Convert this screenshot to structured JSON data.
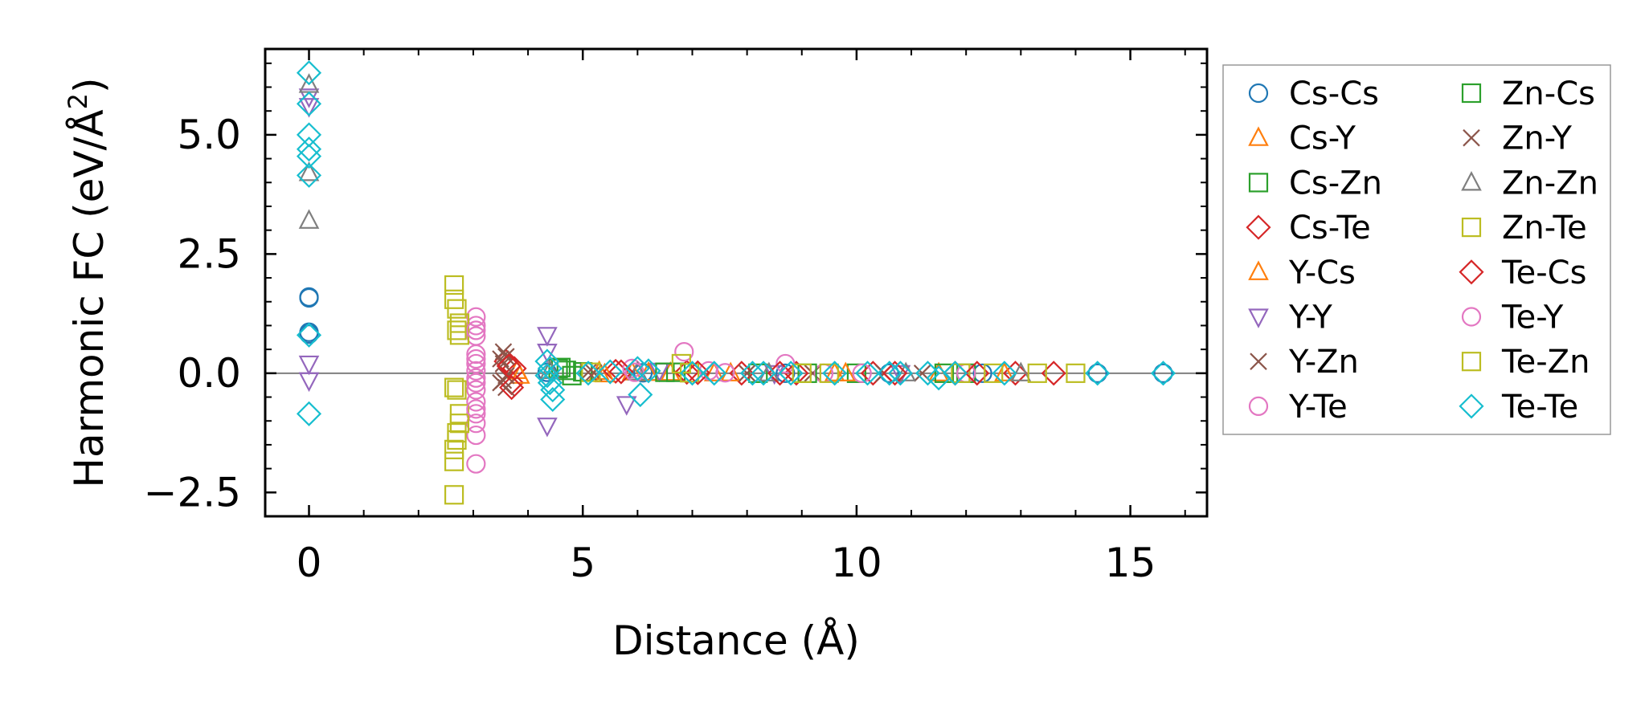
{
  "chart_data": {
    "type": "scatter",
    "xlabel": "Distance (Å)",
    "ylabel_main": "Harmonic FC (eV/Å",
    "ylabel_sup": "2",
    "ylabel_close": ")",
    "xlim": [
      -0.8,
      16.4
    ],
    "ylim": [
      -3.0,
      6.8
    ],
    "xticks": [
      {
        "v": 0,
        "label": "0"
      },
      {
        "v": 5,
        "label": "5"
      },
      {
        "v": 10,
        "label": "10"
      },
      {
        "v": 15,
        "label": "15"
      }
    ],
    "yticks": [
      {
        "v": -2.5,
        "label": "−2.5"
      },
      {
        "v": 0,
        "label": "0.0"
      },
      {
        "v": 2.5,
        "label": "2.5"
      },
      {
        "v": 5,
        "label": "5.0"
      }
    ],
    "grid": false,
    "zero_line": true,
    "legend_position": "outside-right",
    "series": [
      {
        "name": "Cs-Cs",
        "marker": "circle",
        "color": "#1f77b4",
        "points": [
          [
            0,
            1.58
          ],
          [
            0,
            1.6
          ],
          [
            0,
            0.86
          ],
          [
            0,
            0.82
          ],
          [
            4.35,
            0.02
          ],
          [
            6.1,
            0.01
          ],
          [
            8.7,
            0
          ],
          [
            10.6,
            0
          ],
          [
            12.3,
            0
          ],
          [
            14.4,
            0
          ],
          [
            15.6,
            0
          ]
        ]
      },
      {
        "name": "Cs-Y",
        "marker": "triangle-up",
        "color": "#ff7f0e",
        "points": [
          [
            3.8,
            0.05
          ],
          [
            5.3,
            0.03
          ],
          [
            5.9,
            0.02
          ],
          [
            6.6,
            0.01
          ],
          [
            7.4,
            0
          ],
          [
            9.6,
            0
          ],
          [
            11.5,
            0
          ]
        ]
      },
      {
        "name": "Cs-Zn",
        "marker": "square",
        "color": "#2ca02c",
        "points": [
          [
            4.55,
            0.1
          ],
          [
            4.7,
            0.06
          ],
          [
            5.0,
            0.03
          ],
          [
            6.7,
            0.02
          ],
          [
            8.2,
            0
          ],
          [
            10.0,
            0
          ],
          [
            12.0,
            0
          ]
        ]
      },
      {
        "name": "Cs-Te",
        "marker": "diamond",
        "color": "#d62728",
        "points": [
          [
            3.6,
            0.25
          ],
          [
            3.7,
            -0.2
          ],
          [
            3.75,
            0.1
          ],
          [
            5.6,
            0.04
          ],
          [
            6.9,
            0.02
          ],
          [
            7.9,
            0
          ],
          [
            8.9,
            0
          ],
          [
            10.3,
            0
          ],
          [
            11.8,
            0
          ],
          [
            12.9,
            0
          ],
          [
            13.6,
            0
          ]
        ]
      },
      {
        "name": "Y-Cs",
        "marker": "triangle-up",
        "color": "#ff7f0e",
        "points": [
          [
            3.85,
            -0.05
          ],
          [
            5.4,
            -0.02
          ],
          [
            6.2,
            0.01
          ],
          [
            7.7,
            0
          ],
          [
            9.8,
            0
          ],
          [
            12.7,
            0
          ]
        ]
      },
      {
        "name": "Y-Y",
        "marker": "triangle-down",
        "color": "#9467bd",
        "points": [
          [
            0,
            5.8
          ],
          [
            0,
            5.6
          ],
          [
            0,
            0.2
          ],
          [
            0,
            -0.15
          ],
          [
            4.35,
            0.8
          ],
          [
            4.35,
            0.45
          ],
          [
            4.35,
            -1.1
          ],
          [
            5.8,
            -0.65
          ],
          [
            6.4,
            0.05
          ],
          [
            8.5,
            0
          ],
          [
            10.8,
            0
          ]
        ]
      },
      {
        "name": "Y-Zn",
        "marker": "x",
        "color": "#8c564b",
        "points": [
          [
            3.55,
            0.45
          ],
          [
            3.6,
            0.35
          ],
          [
            3.55,
            0.2
          ],
          [
            3.6,
            -0.05
          ],
          [
            3.55,
            -0.15
          ],
          [
            3.6,
            -0.3
          ],
          [
            5.1,
            0.02
          ],
          [
            7.2,
            0
          ],
          [
            9.2,
            0
          ],
          [
            11.2,
            0
          ]
        ]
      },
      {
        "name": "Y-Te",
        "marker": "circle",
        "color": "#e377c2",
        "points": [
          [
            3.05,
            1.18
          ],
          [
            3.05,
            1.0
          ],
          [
            3.05,
            0.78
          ],
          [
            3.05,
            0.4
          ],
          [
            3.05,
            0.2
          ],
          [
            3.05,
            0.05
          ],
          [
            3.05,
            -0.1
          ],
          [
            3.05,
            -0.35
          ],
          [
            3.05,
            -0.6
          ],
          [
            3.05,
            -0.85
          ],
          [
            3.05,
            -1.05
          ],
          [
            3.05,
            -1.3
          ],
          [
            3.05,
            -1.9
          ],
          [
            6.85,
            0.45
          ],
          [
            8.7,
            0.2
          ],
          [
            5.9,
            0.1
          ],
          [
            7.3,
            0.05
          ],
          [
            9.4,
            0
          ],
          [
            12.0,
            0
          ]
        ]
      },
      {
        "name": "Zn-Cs",
        "marker": "square",
        "color": "#2ca02c",
        "points": [
          [
            4.6,
            0.12
          ],
          [
            4.8,
            -0.05
          ],
          [
            6.5,
            0.02
          ],
          [
            9.1,
            0
          ],
          [
            11.6,
            0
          ]
        ]
      },
      {
        "name": "Zn-Y",
        "marker": "x",
        "color": "#8c564b",
        "points": [
          [
            3.5,
            0.3
          ],
          [
            3.5,
            -0.2
          ],
          [
            5.2,
            0.01
          ],
          [
            8.0,
            0
          ],
          [
            10.5,
            0
          ]
        ]
      },
      {
        "name": "Zn-Zn",
        "marker": "triangle-up",
        "color": "#7f7f7f",
        "points": [
          [
            0,
            6.05
          ],
          [
            0,
            4.2
          ],
          [
            0,
            3.2
          ],
          [
            4.4,
            0.05
          ],
          [
            6.0,
            0.02
          ],
          [
            8.4,
            0
          ],
          [
            10.9,
            0
          ],
          [
            13.0,
            0
          ]
        ]
      },
      {
        "name": "Zn-Te",
        "marker": "square",
        "color": "#bcbd22",
        "points": [
          [
            2.65,
            1.85
          ],
          [
            2.65,
            1.55
          ],
          [
            2.75,
            1.05
          ],
          [
            2.75,
            0.8
          ],
          [
            2.65,
            -0.3
          ],
          [
            2.75,
            -0.85
          ],
          [
            2.75,
            -1.05
          ],
          [
            2.7,
            -1.25
          ],
          [
            2.65,
            -1.6
          ],
          [
            2.65,
            -1.85
          ],
          [
            2.65,
            -2.55
          ],
          [
            5.15,
            0.02
          ],
          [
            6.95,
            0.01
          ],
          [
            9.5,
            0
          ],
          [
            11.9,
            0
          ],
          [
            13.3,
            0
          ],
          [
            14.0,
            0
          ]
        ]
      },
      {
        "name": "Te-Cs",
        "marker": "diamond",
        "color": "#d62728",
        "points": [
          [
            3.65,
            0.15
          ],
          [
            3.7,
            -0.3
          ],
          [
            5.7,
            0.03
          ],
          [
            7.1,
            0.01
          ],
          [
            8.6,
            0
          ],
          [
            10.7,
            0
          ],
          [
            12.2,
            0
          ]
        ]
      },
      {
        "name": "Te-Y",
        "marker": "circle",
        "color": "#e377c2",
        "points": [
          [
            3.05,
            0.9
          ],
          [
            3.05,
            0.3
          ],
          [
            3.05,
            -0.2
          ],
          [
            3.05,
            -0.75
          ],
          [
            5.95,
            0.02
          ],
          [
            7.6,
            0.01
          ],
          [
            10.1,
            0
          ]
        ]
      },
      {
        "name": "Te-Zn",
        "marker": "square",
        "color": "#bcbd22",
        "points": [
          [
            2.7,
            1.35
          ],
          [
            2.7,
            0.9
          ],
          [
            2.7,
            -0.35
          ],
          [
            2.7,
            -1.4
          ],
          [
            6.8,
            0.2
          ],
          [
            9.0,
            0
          ],
          [
            12.5,
            0
          ]
        ]
      },
      {
        "name": "Te-Te",
        "marker": "diamond",
        "color": "#17becf",
        "points": [
          [
            0,
            6.3
          ],
          [
            0,
            5.65
          ],
          [
            0,
            5.0
          ],
          [
            0,
            4.7
          ],
          [
            0,
            4.55
          ],
          [
            0,
            4.15
          ],
          [
            0,
            0.8
          ],
          [
            0,
            -0.85
          ],
          [
            4.35,
            0.25
          ],
          [
            4.4,
            0.1
          ],
          [
            4.35,
            -0.05
          ],
          [
            4.4,
            -0.2
          ],
          [
            4.45,
            -0.35
          ],
          [
            4.45,
            -0.55
          ],
          [
            5.1,
            0
          ],
          [
            5.5,
            0.03
          ],
          [
            6.0,
            0.1
          ],
          [
            6.05,
            -0.45
          ],
          [
            6.2,
            0.05
          ],
          [
            7.0,
            0
          ],
          [
            7.4,
            0
          ],
          [
            8.1,
            0
          ],
          [
            8.3,
            0
          ],
          [
            8.8,
            0
          ],
          [
            9.6,
            0
          ],
          [
            10.2,
            0
          ],
          [
            10.6,
            0
          ],
          [
            10.8,
            0
          ],
          [
            11.3,
            0
          ],
          [
            11.5,
            -0.1
          ],
          [
            11.8,
            0
          ],
          [
            12.7,
            0
          ],
          [
            14.4,
            0
          ],
          [
            15.6,
            0
          ]
        ]
      }
    ]
  }
}
